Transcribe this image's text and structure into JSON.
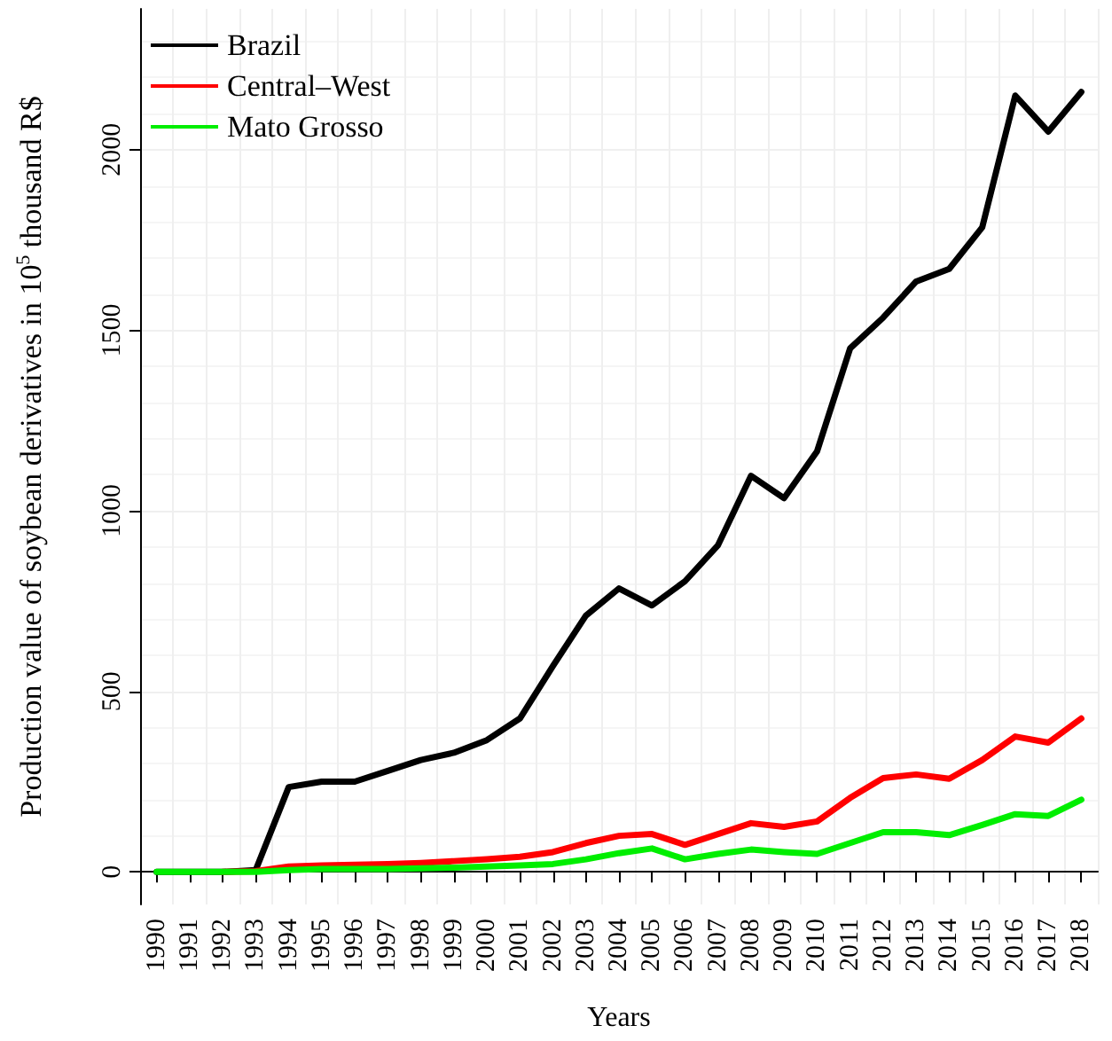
{
  "chart_data": {
    "type": "line",
    "xlabel": "Years",
    "ylabel": "Production value of soybean derivatives in 10$^{5}$ thousand R$",
    "categories": [
      "1990",
      "1991",
      "1992",
      "1993",
      "1994",
      "1995",
      "1996",
      "1997",
      "1998",
      "1999",
      "2000",
      "2001",
      "2002",
      "2003",
      "2004",
      "2005",
      "2006",
      "2007",
      "2008",
      "2009",
      "2010",
      "2011",
      "2012",
      "2013",
      "2014",
      "2015",
      "2016",
      "2017",
      "2018"
    ],
    "series": [
      {
        "name": "Brazil",
        "color": "#000000",
        "values": [
          0,
          0,
          0,
          5,
          235,
          250,
          250,
          280,
          310,
          330,
          365,
          425,
          570,
          710,
          785,
          738,
          805,
          905,
          1097,
          1035,
          1165,
          1450,
          1535,
          1635,
          1670,
          1785,
          2150,
          2050,
          2160
        ]
      },
      {
        "name": "Central–West",
        "color": "#ff0000",
        "values": [
          null,
          null,
          0,
          2,
          15,
          18,
          20,
          22,
          25,
          30,
          35,
          42,
          55,
          80,
          100,
          105,
          75,
          105,
          135,
          125,
          140,
          205,
          260,
          270,
          258,
          310,
          375,
          358,
          425
        ]
      },
      {
        "name": "Mato Grosso",
        "color": "#00ee00",
        "values": [
          0,
          0,
          0,
          0,
          5,
          8,
          8,
          8,
          10,
          12,
          15,
          18,
          22,
          35,
          52,
          65,
          35,
          50,
          62,
          55,
          50,
          80,
          110,
          110,
          102,
          130,
          160,
          155,
          200
        ]
      }
    ],
    "ylim": [
      -90,
      2390
    ],
    "yticks": [
      0,
      500,
      1000,
      1500,
      2000
    ],
    "grid": true,
    "legend": "top left",
    "marker": "none",
    "line_style": "solid"
  }
}
